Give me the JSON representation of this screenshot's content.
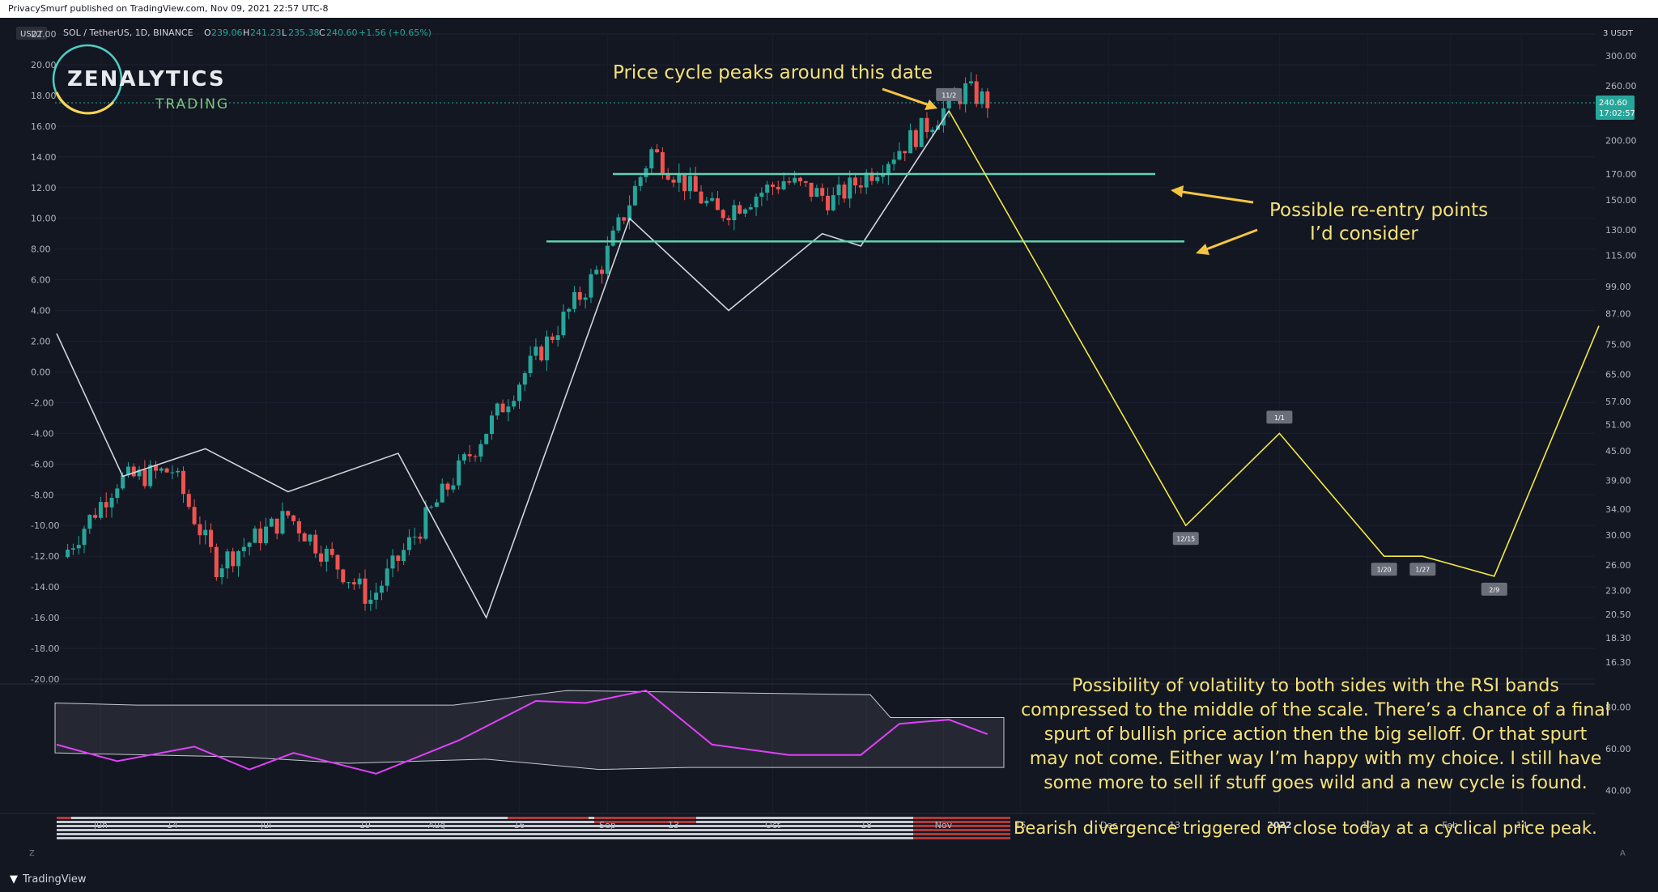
{
  "header": {
    "publisher": "PrivacySmurf published on TradingView.com, Nov 09, 2021 22:57 UTC-8"
  },
  "symbol_line": {
    "pair": "SOL / TetherUS, 1D, BINANCE",
    "o_label": "O",
    "o": "239.06",
    "h_label": "H",
    "h": "241.23",
    "l_label": "L",
    "l": "235.38",
    "c_label": "C",
    "c": "240.60",
    "change": "+1.56 (+0.65%)"
  },
  "logo": {
    "name": "ZENALYTICS",
    "sub": "TRADING"
  },
  "left_axis": {
    "currency": "USDT",
    "labels": [
      "22.00",
      "20.00",
      "18.00",
      "16.00",
      "14.00",
      "12.00",
      "10.00",
      "8.00",
      "6.00",
      "4.00",
      "2.00",
      "0.00",
      "-2.00",
      "-4.00",
      "-6.00",
      "-8.00",
      "-10.00",
      "-12.00",
      "-14.00",
      "-16.00",
      "-18.00",
      "-20.00"
    ]
  },
  "right_axis": {
    "scale_btn": "3 USDT",
    "labels": [
      "300.00",
      "260.00",
      "200.00",
      "170.00",
      "150.00",
      "130.00",
      "115.00",
      "99.00",
      "87.00",
      "75.00",
      "65.00",
      "57.00",
      "51.00",
      "45.00",
      "39.00",
      "34.00",
      "30.00",
      "26.00",
      "23.00",
      "20.50",
      "18.30",
      "16.30"
    ],
    "price_badge": "240.60",
    "price_timer": "17:02:57"
  },
  "osc_axis": {
    "labels": [
      "80.00",
      "60.00",
      "40.00"
    ]
  },
  "time_axis": {
    "labels": [
      "Jun",
      "14",
      "Jul",
      "19",
      "Aug",
      "16",
      "Sep",
      "13",
      "Oct",
      "18",
      "Nov",
      "15",
      "Dec",
      "13",
      "2022",
      "17",
      "Feb",
      "14"
    ],
    "bold": [
      "2022"
    ]
  },
  "annotations": {
    "peak_note": "Price cycle peaks around this date",
    "reentry_line1": "Possible re-entry points",
    "reentry_line2": "I’d consider",
    "volatility_note": [
      "Possibility of volatility to both sides with the RSI bands",
      "compressed to the middle of the scale. There’s a chance of a final",
      "spurt of bullish price action then the big selloff. Or that spurt",
      "may not come. Either way I’m happy with my choice. I still have",
      "some more to sell if stuff goes wild and a new cycle is found."
    ],
    "divergence_note": "Bearish divergence triggered on close today at a cyclical price peak."
  },
  "cycle_markers": [
    "11/2",
    "12/15",
    "1/1",
    "1/20",
    "1/27",
    "2/9"
  ],
  "corner_buttons": {
    "left": "Z",
    "right": "A"
  },
  "footer": {
    "brand": "TradingView"
  },
  "colors": {
    "background": "#131722",
    "up": "#26a69a",
    "down": "#ef5350",
    "cycle_line": "#d1d4dc",
    "projection_line": "#f5e842",
    "support_line": "#5fd3b3",
    "annotation": "#f5e17a",
    "rsi": "#e040fb",
    "price_badge": "#26a69a"
  },
  "chart_data": {
    "type": "candlestick",
    "price_scale": "log",
    "series_price": [
      {
        "date": "2021-05-25",
        "close": 27
      },
      {
        "date": "2021-06-04",
        "close": 39
      },
      {
        "date": "2021-06-14",
        "close": 41
      },
      {
        "date": "2021-06-22",
        "close": 26
      },
      {
        "date": "2021-07-05",
        "close": 33
      },
      {
        "date": "2021-07-20",
        "close": 22
      },
      {
        "date": "2021-08-01",
        "close": 35
      },
      {
        "date": "2021-08-16",
        "close": 63
      },
      {
        "date": "2021-08-31",
        "close": 110
      },
      {
        "date": "2021-09-09",
        "close": 190
      },
      {
        "date": "2021-09-21",
        "close": 140
      },
      {
        "date": "2021-10-03",
        "close": 165
      },
      {
        "date": "2021-10-12",
        "close": 150
      },
      {
        "date": "2021-10-21",
        "close": 180
      },
      {
        "date": "2021-10-28",
        "close": 210
      },
      {
        "date": "2021-11-05",
        "close": 255
      },
      {
        "date": "2021-11-09",
        "close": 240.6
      }
    ],
    "cycle_oscillator": {
      "left_axis_range": [
        -20,
        22
      ],
      "points": [
        {
          "date": "2021-05-24",
          "value": 2.5
        },
        {
          "date": "2021-06-05",
          "value": -6.8
        },
        {
          "date": "2021-06-20",
          "value": -5
        },
        {
          "date": "2021-07-05",
          "value": -7.8
        },
        {
          "date": "2021-07-25",
          "value": -5.3
        },
        {
          "date": "2021-08-10",
          "value": -16
        },
        {
          "date": "2021-09-05",
          "value": 10
        },
        {
          "date": "2021-09-23",
          "value": 4
        },
        {
          "date": "2021-10-10",
          "value": 9
        },
        {
          "date": "2021-10-17",
          "value": 8.2
        },
        {
          "date": "2021-11-02",
          "value": 17
        }
      ]
    },
    "projection": [
      {
        "label": "11/2",
        "date": "2021-11-02",
        "value": 17
      },
      {
        "label": "12/15",
        "date": "2021-12-15",
        "value": -10
      },
      {
        "label": "1/1",
        "date": "2022-01-01",
        "value": -4
      },
      {
        "label": "1/20",
        "date": "2022-01-20",
        "value": -12
      },
      {
        "label": "1/27",
        "date": "2022-01-27",
        "value": -12
      },
      {
        "label": "2/9",
        "date": "2022-02-09",
        "value": -13.3
      },
      {
        "date": "2022-02-28",
        "value": 3
      }
    ],
    "support_levels": [
      170,
      123
    ],
    "rsi": {
      "ylim": [
        30,
        90
      ],
      "points": [
        {
          "date": "2021-05-24",
          "value": 62
        },
        {
          "date": "2021-06-04",
          "value": 54
        },
        {
          "date": "2021-06-18",
          "value": 61
        },
        {
          "date": "2021-06-28",
          "value": 50
        },
        {
          "date": "2021-07-06",
          "value": 58
        },
        {
          "date": "2021-07-21",
          "value": 48
        },
        {
          "date": "2021-08-05",
          "value": 64
        },
        {
          "date": "2021-08-19",
          "value": 83
        },
        {
          "date": "2021-08-28",
          "value": 82
        },
        {
          "date": "2021-09-08",
          "value": 88
        },
        {
          "date": "2021-09-20",
          "value": 62
        },
        {
          "date": "2021-10-04",
          "value": 57
        },
        {
          "date": "2021-10-17",
          "value": 57
        },
        {
          "date": "2021-10-24",
          "value": 72
        },
        {
          "date": "2021-11-02",
          "value": 74
        },
        {
          "date": "2021-11-09",
          "value": 67
        }
      ]
    }
  }
}
